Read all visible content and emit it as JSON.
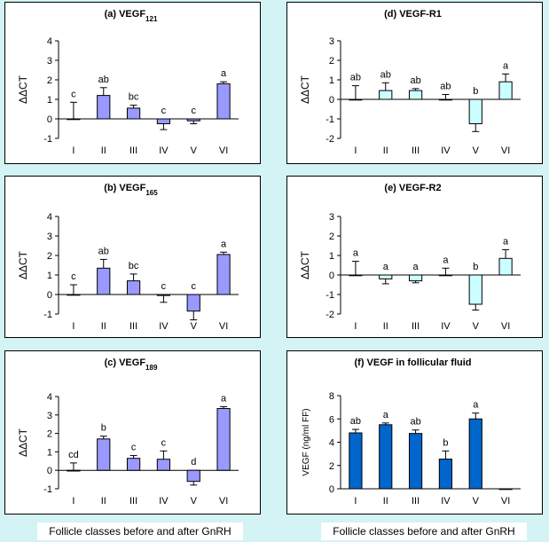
{
  "colors": {
    "page_background": "#d3f3f5",
    "panel_background": "#ffffff",
    "bar_purple": "#9999ff",
    "bar_cyan": "#ccffff",
    "bar_blue": "#0066cc"
  },
  "footer": {
    "left_label": "Follicle classes before and after GnRH",
    "right_label": "Follicle classes before and after GnRH"
  },
  "chart_data": [
    {
      "type": "bar",
      "title_main": "(a) VEGF",
      "title_sub": "121",
      "ylabel": "ΔΔCT",
      "xlabel": "",
      "categories": [
        "I",
        "II",
        "III",
        "IV",
        "V",
        "VI"
      ],
      "values": [
        0.0,
        1.2,
        0.55,
        -0.25,
        -0.1,
        1.8
      ],
      "errors": [
        0.85,
        0.4,
        0.15,
        0.3,
        0.15,
        0.1
      ],
      "letters": [
        "c",
        "ab",
        "bc",
        "c",
        "c",
        "a"
      ],
      "ylim": [
        -1,
        4
      ],
      "yticks": [
        -1,
        0,
        1,
        2,
        3,
        4
      ],
      "bar_color": "#9999ff"
    },
    {
      "type": "bar",
      "title_main": "(b) VEGF",
      "title_sub": "165",
      "ylabel": "ΔΔCT",
      "xlabel": "",
      "categories": [
        "I",
        "II",
        "III",
        "IV",
        "V",
        "VI"
      ],
      "values": [
        0.0,
        1.35,
        0.7,
        -0.05,
        -0.85,
        2.05
      ],
      "errors": [
        0.5,
        0.45,
        0.35,
        0.35,
        0.45,
        0.12
      ],
      "letters": [
        "c",
        "ab",
        "bc",
        "c",
        "c",
        "a"
      ],
      "ylim": [
        -1,
        4
      ],
      "yticks": [
        -1,
        0,
        1,
        2,
        3,
        4
      ],
      "bar_color": "#9999ff"
    },
    {
      "type": "bar",
      "title_main": "(c) VEGF",
      "title_sub": "189",
      "ylabel": "ΔΔCT",
      "xlabel": "",
      "categories": [
        "I",
        "II",
        "III",
        "IV",
        "V",
        "VI"
      ],
      "values": [
        0.0,
        1.7,
        0.65,
        0.6,
        -0.6,
        3.35
      ],
      "errors": [
        0.4,
        0.15,
        0.15,
        0.45,
        0.2,
        0.1
      ],
      "letters": [
        "cd",
        "b",
        "c",
        "c",
        "d",
        "a"
      ],
      "ylim": [
        -1,
        4
      ],
      "yticks": [
        -1,
        0,
        1,
        2,
        3,
        4
      ],
      "bar_color": "#9999ff"
    },
    {
      "type": "bar",
      "title_main": "(d) VEGF-R1",
      "title_sub": "",
      "ylabel": "ΔΔCT",
      "xlabel": "",
      "categories": [
        "I",
        "II",
        "III",
        "IV",
        "V",
        "VI"
      ],
      "values": [
        0.0,
        0.45,
        0.45,
        0.0,
        -1.25,
        0.9
      ],
      "errors": [
        0.7,
        0.4,
        0.1,
        0.25,
        0.4,
        0.4
      ],
      "letters": [
        "ab",
        "ab",
        "ab",
        "ab",
        "b",
        "a"
      ],
      "ylim": [
        -2,
        3
      ],
      "yticks": [
        -2,
        -1,
        0,
        1,
        2,
        3
      ],
      "bar_color": "#ccffff"
    },
    {
      "type": "bar",
      "title_main": "(e) VEGF-R2",
      "title_sub": "",
      "ylabel": "ΔΔCT",
      "xlabel": "",
      "categories": [
        "I",
        "II",
        "III",
        "IV",
        "V",
        "VI"
      ],
      "values": [
        0.0,
        -0.2,
        -0.3,
        0.0,
        -1.5,
        0.85
      ],
      "errors": [
        0.7,
        0.25,
        0.1,
        0.35,
        0.3,
        0.45
      ],
      "letters": [
        "a",
        "a",
        "a",
        "a",
        "b",
        "a"
      ],
      "ylim": [
        -2,
        3
      ],
      "yticks": [
        -2,
        -1,
        0,
        1,
        2,
        3
      ],
      "bar_color": "#ccffff"
    },
    {
      "type": "bar",
      "title_main": "(f) VEGF in follicular fluid",
      "title_sub": "",
      "ylabel": "VEGF (ng/ml FF)",
      "xlabel": "",
      "categories": [
        "I",
        "II",
        "III",
        "IV",
        "V",
        "VI"
      ],
      "values": [
        4.8,
        5.5,
        4.75,
        2.55,
        6.0,
        0.0
      ],
      "errors": [
        0.3,
        0.15,
        0.3,
        0.7,
        0.5,
        0.0
      ],
      "letters": [
        "ab",
        "a",
        "ab",
        "b",
        "a",
        ""
      ],
      "ylim": [
        0,
        8
      ],
      "yticks": [
        0,
        2,
        4,
        6,
        8
      ],
      "bar_color": "#0066cc"
    }
  ]
}
